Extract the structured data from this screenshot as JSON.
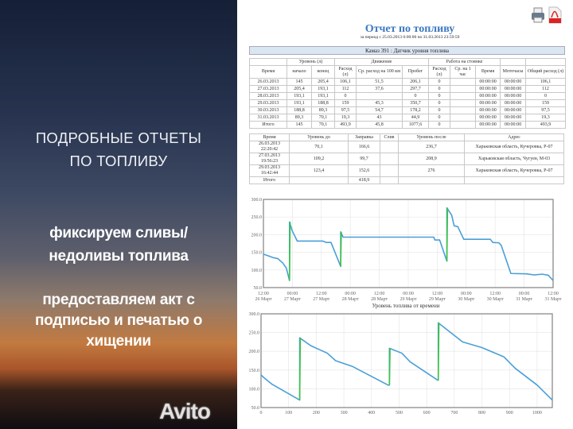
{
  "promo": {
    "heading_line1": "ПОДРОБНЫЕ ОТЧЕТЫ",
    "heading_line2": "ПО ТОПЛИВУ",
    "point1_line1": "фиксируем сливы/",
    "point1_line2": "недоливы топлива",
    "point2_line1": "предоставляем акт с",
    "point2_line2": "подписью и печатью о",
    "point2_line3": "хищении"
  },
  "report": {
    "icons": [
      "printer-icon",
      "pdf-icon"
    ],
    "title": "Отчет по топливу",
    "period": "за период с 25.03.2013 0:00:00 по 31.03.2013 23:59:59",
    "banner": "Камаз 391 : Датчик уровня топлива",
    "summary": {
      "group_headers": [
        "Уровень (л)",
        "Движение",
        "Работа на стоянке"
      ],
      "headers": [
        "Время",
        "начало",
        "конец",
        "Расход (л)",
        "Ср. расход на 100 км",
        "Пробег",
        "Расход (л)",
        "Ср. на 1 час",
        "Время",
        "Моточасы",
        "Общий расход (л)"
      ],
      "rows": [
        [
          "26.03.2013",
          "145",
          "205,4",
          "106,1",
          "51,5",
          "206,1",
          "0",
          "",
          "00:00:00",
          "00:00:00",
          "106,1"
        ],
        [
          "27.03.2013",
          "205,4",
          "193,1",
          "112",
          "37,6",
          "297,7",
          "0",
          "",
          "00:00:00",
          "00:00:00",
          "112"
        ],
        [
          "28.03.2013",
          "193,1",
          "193,1",
          "0",
          "",
          "0",
          "0",
          "",
          "00:00:00",
          "00:00:00",
          "0"
        ],
        [
          "29.03.2013",
          "193,1",
          "188,8",
          "159",
          "45,3",
          "350,7",
          "0",
          "",
          "00:00:00",
          "00:00:00",
          "159"
        ],
        [
          "30.03.2013",
          "188,8",
          "89,3",
          "97,5",
          "54,7",
          "178,2",
          "0",
          "",
          "00:00:00",
          "00:00:00",
          "97,5"
        ],
        [
          "31.03.2013",
          "89,3",
          "70,1",
          "19,3",
          "43",
          "44,9",
          "0",
          "",
          "00:00:00",
          "00:00:00",
          "19,3"
        ],
        [
          "Итого",
          "145",
          "70,1",
          "493,9",
          "45,8",
          "1077,6",
          "0",
          "",
          "00:00:00",
          "00:00:00",
          "493,9"
        ]
      ]
    },
    "refuels": {
      "headers": [
        "Время",
        "Уровень до",
        "Заправка",
        "Слив",
        "Уровень после",
        "Адрес"
      ],
      "rows": [
        [
          "26.03.2013 22:20:42",
          "70,1",
          "166,6",
          "",
          "236,7",
          "Харьковская область, Кучеровка, Р-07"
        ],
        [
          "27.03.2013 19:56:23",
          "109,2",
          "99,7",
          "",
          "208,9",
          "Харьковская область, Чугуев, М-03"
        ],
        [
          "29.03.2013 16:42:44",
          "123,4",
          "152,6",
          "",
          "276",
          "Харьковская область, Кучеровка, Р-07"
        ],
        [
          "Итого",
          "",
          "418,9",
          "",
          "",
          ""
        ]
      ]
    }
  },
  "watermark": "Avito",
  "colors": {
    "line": "#4a9fd8",
    "refuel": "#3ec43e",
    "title": "#3c78c0"
  },
  "chart_data": [
    {
      "type": "line",
      "title": "",
      "xlabel": "Уровень топлива от времени",
      "ylim": [
        50,
        300
      ],
      "yticks": [
        "50.0",
        "100.0",
        "150.0",
        "200.0",
        "250.0",
        "300.0"
      ],
      "xticks": [
        [
          "12:00",
          "26 Март"
        ],
        [
          "00:00",
          "27 Март"
        ],
        [
          "12:00",
          "27 Март"
        ],
        [
          "00:00",
          "28 Март"
        ],
        [
          "12:00",
          "28 Март"
        ],
        [
          "00:00",
          "29 Март"
        ],
        [
          "12:00",
          "29 Март"
        ],
        [
          "00:00",
          "30 Март"
        ],
        [
          "12:00",
          "30 Март"
        ],
        [
          "00:00",
          "31 Март"
        ],
        [
          "12:00",
          "31 Март"
        ]
      ],
      "x_unit": "hours from 26 Март 12:00",
      "grid": true,
      "x": [
        0,
        2,
        4,
        6,
        8,
        9.5,
        10.8,
        10.8,
        12,
        14,
        24.5,
        26,
        28,
        32,
        32,
        33,
        70.6,
        71,
        73,
        76,
        76,
        78,
        79,
        80.5,
        83,
        94,
        95,
        97.5,
        98.5,
        102.5,
        109,
        112,
        115.5,
        118,
        120
      ],
      "y": [
        145,
        140,
        135,
        132,
        120,
        105,
        70,
        236,
        210,
        182,
        182,
        178,
        178,
        110,
        208,
        193,
        193,
        185,
        185,
        125,
        276,
        255,
        225,
        223,
        187,
        187,
        178,
        177,
        170,
        90,
        89,
        86,
        88,
        85,
        70
      ],
      "refuels": [
        [
          10.8,
          70,
          236
        ],
        [
          32,
          110,
          208
        ],
        [
          76,
          125,
          276
        ]
      ]
    },
    {
      "type": "line",
      "title": "",
      "xlim": [
        0,
        1055
      ],
      "ylim": [
        50,
        300
      ],
      "yticks": [
        "50.0",
        "100.0",
        "150.0",
        "200.0",
        "250.0",
        "300.0"
      ],
      "xticks": [
        "0",
        "100",
        "200",
        "300",
        "400",
        "500",
        "600",
        "700",
        "800",
        "900",
        "1000"
      ],
      "grid": true,
      "x": [
        0,
        10,
        40,
        140,
        140,
        180,
        240,
        270,
        330,
        460,
        465,
        465,
        510,
        540,
        640,
        642,
        642,
        730,
        800,
        880,
        920,
        1000,
        1055
      ],
      "y": [
        137,
        130,
        112,
        70,
        236,
        215,
        195,
        175,
        160,
        110,
        110,
        208,
        195,
        172,
        123,
        123,
        276,
        225,
        210,
        185,
        155,
        110,
        70
      ],
      "refuels": [
        [
          140,
          70,
          236
        ],
        [
          465,
          110,
          208
        ],
        [
          642,
          123,
          276
        ]
      ]
    }
  ]
}
